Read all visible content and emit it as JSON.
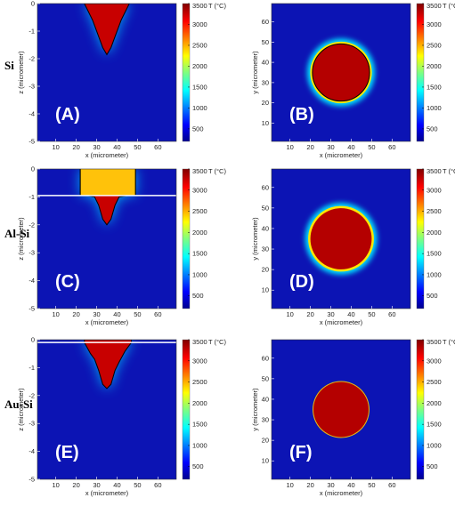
{
  "row_labels": [
    "Si",
    "Al-Si",
    "Au-Si"
  ],
  "chart_data": [
    {
      "type": "heatmap",
      "view": "cross-section",
      "panel_label": "(A)",
      "xlabel": "x (micrometer)",
      "ylabel": "z (micrometer)",
      "xlim": [
        1,
        69
      ],
      "ylim": [
        -5,
        0
      ],
      "xticks": [
        "10",
        "20",
        "30",
        "40",
        "50",
        "60"
      ],
      "yticks": [
        "0",
        "-1",
        "-2",
        "-3",
        "-4",
        "-5"
      ],
      "colorbar": {
        "title": "T (°C)",
        "range": [
          200,
          3500
        ],
        "ticks": [
          "3500",
          "3000",
          "2500",
          "2000",
          "1500",
          "1000",
          "500"
        ]
      },
      "melt_profile": [
        [
          24,
          0
        ],
        [
          28,
          -0.6
        ],
        [
          31,
          -1.2
        ],
        [
          33,
          -1.6
        ],
        [
          35,
          -1.85
        ],
        [
          37,
          -1.6
        ],
        [
          39,
          -1.2
        ],
        [
          42,
          -0.6
        ],
        [
          46,
          0
        ]
      ]
    },
    {
      "type": "heatmap",
      "view": "top",
      "panel_label": "(B)",
      "xlabel": "x (micrometer)",
      "ylabel": "y (micrometer)",
      "xlim": [
        1,
        69
      ],
      "ylim": [
        1,
        69
      ],
      "xticks": [
        "10",
        "20",
        "30",
        "40",
        "50",
        "60"
      ],
      "yticks": [
        "60",
        "50",
        "40",
        "30",
        "20",
        "10"
      ],
      "colorbar": {
        "title": "T (°C)",
        "range": [
          200,
          3500
        ],
        "ticks": [
          "3500",
          "3000",
          "2500",
          "2000",
          "1500",
          "1000",
          "500"
        ]
      },
      "melt_circle": {
        "cx": 35,
        "cy": 35,
        "r": 14
      }
    },
    {
      "type": "heatmap",
      "view": "cross-section",
      "panel_label": "(C)",
      "xlabel": "x (micrometer)",
      "ylabel": "z (micrometer)",
      "xlim": [
        1,
        69
      ],
      "ylim": [
        -5,
        0
      ],
      "xticks": [
        "10",
        "20",
        "30",
        "40",
        "50",
        "60"
      ],
      "yticks": [
        "0",
        "-1",
        "-2",
        "-3",
        "-4",
        "-5"
      ],
      "colorbar": {
        "title": "T (°C)",
        "range": [
          200,
          3500
        ],
        "ticks": [
          "3500",
          "3000",
          "2500",
          "2000",
          "1500",
          "1000",
          "500"
        ]
      },
      "film_interface_z": -0.95,
      "melt_profile": [
        [
          22,
          0
        ],
        [
          22,
          -0.9
        ],
        [
          29,
          -1.0
        ],
        [
          31,
          -1.3
        ],
        [
          33,
          -1.8
        ],
        [
          35,
          -2.0
        ],
        [
          37,
          -1.8
        ],
        [
          39,
          -1.3
        ],
        [
          41,
          -1.0
        ],
        [
          49,
          -0.9
        ],
        [
          49,
          0
        ]
      ]
    },
    {
      "type": "heatmap",
      "view": "top",
      "panel_label": "(D)",
      "xlabel": "x (micrometer)",
      "ylabel": "y (micrometer)",
      "xlim": [
        1,
        69
      ],
      "ylim": [
        1,
        69
      ],
      "xticks": [
        "10",
        "20",
        "30",
        "40",
        "50",
        "60"
      ],
      "yticks": [
        "60",
        "50",
        "40",
        "30",
        "20",
        "10"
      ],
      "colorbar": {
        "title": "T (°C)",
        "range": [
          200,
          3500
        ],
        "ticks": [
          "3500",
          "3000",
          "2500",
          "2000",
          "1500",
          "1000",
          "500"
        ]
      },
      "melt_circle": {
        "cx": 35,
        "cy": 35,
        "r": 15
      }
    },
    {
      "type": "heatmap",
      "view": "cross-section",
      "panel_label": "(E)",
      "xlabel": "x (micrometer)",
      "ylabel": "z (micrometer)",
      "xlim": [
        1,
        69
      ],
      "ylim": [
        -5,
        0
      ],
      "xticks": [
        "10",
        "20",
        "30",
        "40",
        "50",
        "60"
      ],
      "yticks": [
        "0",
        "-1",
        "-2",
        "-3",
        "-4",
        "-5"
      ],
      "colorbar": {
        "title": "T (°C)",
        "range": [
          200,
          3500
        ],
        "ticks": [
          "3500",
          "3000",
          "2500",
          "2000",
          "1500",
          "1000",
          "500"
        ]
      },
      "film_interface_z": -0.1,
      "melt_profile": [
        [
          24,
          0
        ],
        [
          24,
          -0.1
        ],
        [
          27,
          -0.5
        ],
        [
          29,
          -0.7
        ],
        [
          31,
          -1.1
        ],
        [
          33,
          -1.6
        ],
        [
          35,
          -1.75
        ],
        [
          37,
          -1.6
        ],
        [
          39,
          -1.1
        ],
        [
          41,
          -0.8
        ],
        [
          44,
          -0.4
        ],
        [
          47,
          -0.1
        ],
        [
          47,
          0
        ]
      ]
    },
    {
      "type": "heatmap",
      "view": "top",
      "panel_label": "(F)",
      "xlabel": "x (micrometer)",
      "ylabel": "y (micrometer)",
      "xlim": [
        1,
        69
      ],
      "ylim": [
        1,
        69
      ],
      "xticks": [
        "10",
        "20",
        "30",
        "40",
        "50",
        "60"
      ],
      "yticks": [
        "60",
        "50",
        "40",
        "30",
        "20",
        "10"
      ],
      "colorbar": {
        "title": "T (°C)",
        "range": [
          200,
          3500
        ],
        "ticks": [
          "3500",
          "3000",
          "2500",
          "2000",
          "1500",
          "1000",
          "500"
        ]
      },
      "melt_circle": {
        "cx": 35,
        "cy": 35,
        "r": 13.5
      }
    }
  ]
}
